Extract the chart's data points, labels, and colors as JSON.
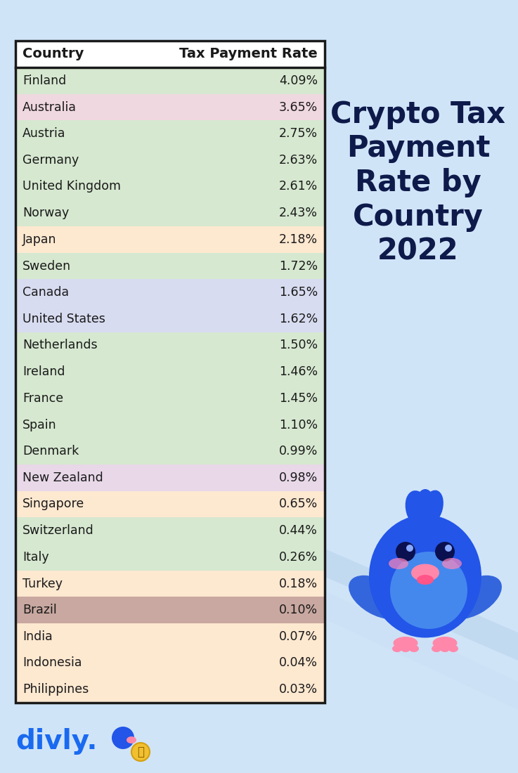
{
  "title": "Crypto Tax\nPayment\nRate by\nCountry\n2022",
  "header": [
    "Country",
    "Tax Payment Rate"
  ],
  "rows": [
    [
      "Finland",
      "4.09%"
    ],
    [
      "Australia",
      "3.65%"
    ],
    [
      "Austria",
      "2.75%"
    ],
    [
      "Germany",
      "2.63%"
    ],
    [
      "United Kingdom",
      "2.61%"
    ],
    [
      "Norway",
      "2.43%"
    ],
    [
      "Japan",
      "2.18%"
    ],
    [
      "Sweden",
      "1.72%"
    ],
    [
      "Canada",
      "1.65%"
    ],
    [
      "United States",
      "1.62%"
    ],
    [
      "Netherlands",
      "1.50%"
    ],
    [
      "Ireland",
      "1.46%"
    ],
    [
      "France",
      "1.45%"
    ],
    [
      "Spain",
      "1.10%"
    ],
    [
      "Denmark",
      "0.99%"
    ],
    [
      "New Zealand",
      "0.98%"
    ],
    [
      "Singapore",
      "0.65%"
    ],
    [
      "Switzerland",
      "0.44%"
    ],
    [
      "Italy",
      "0.26%"
    ],
    [
      "Turkey",
      "0.18%"
    ],
    [
      "Brazil",
      "0.10%"
    ],
    [
      "India",
      "0.07%"
    ],
    [
      "Indonesia",
      "0.04%"
    ],
    [
      "Philippines",
      "0.03%"
    ]
  ],
  "row_colors": [
    "#d6e8d0",
    "#f0d8e0",
    "#d6e8d0",
    "#d6e8d0",
    "#d6e8d0",
    "#d6e8d0",
    "#fde8d0",
    "#d6e8d0",
    "#d8dcf0",
    "#d8dcf0",
    "#d6e8d0",
    "#d6e8d0",
    "#d6e8d0",
    "#d6e8d0",
    "#d6e8d0",
    "#e8d8e8",
    "#fde8d0",
    "#d6e8d0",
    "#d6e8d0",
    "#fde8d0",
    "#c8a8a0",
    "#fde8d0",
    "#fde8d0",
    "#fde8d0"
  ],
  "background_color": "#d0e4f8",
  "title_color": "#0d1a4a",
  "text_color": "#1a1a1a",
  "border_color": "#1a1a1a",
  "divly_color": "#1a6af0",
  "bird_body_color": "#2255e8",
  "bird_belly_color": "#4488ff",
  "bird_beak_color": "#ff88aa",
  "bird_feet_color": "#ff88aa"
}
